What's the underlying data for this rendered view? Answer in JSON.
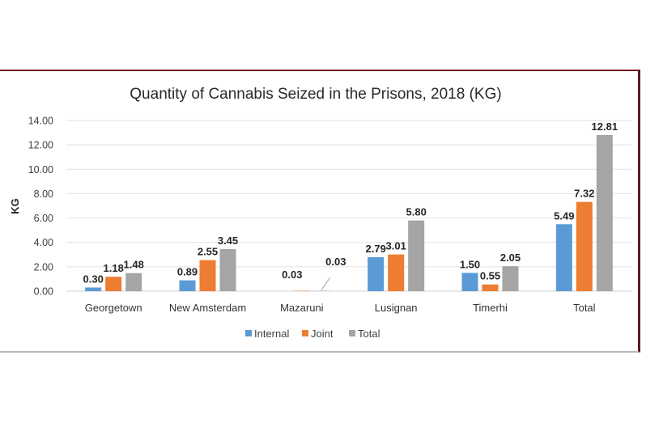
{
  "chart_data": {
    "type": "bar",
    "title": "Quantity of Cannabis Seized in the Prisons, 2018 (KG)",
    "xlabel": "",
    "ylabel": "KG",
    "ylim": [
      0,
      14
    ],
    "yticks": [
      "0.00",
      "2.00",
      "4.00",
      "6.00",
      "8.00",
      "10.00",
      "12.00",
      "14.00"
    ],
    "grid": true,
    "legend_position": "bottom",
    "categories": [
      "Georgetown",
      "New Amsterdam",
      "Mazaruni",
      "Lusignan",
      "Timerhi",
      "Total"
    ],
    "series": [
      {
        "name": "Internal",
        "color": "#5b9bd5",
        "values": [
          0.3,
          0.89,
          null,
          2.79,
          1.5,
          5.49
        ],
        "labels": [
          "0.30",
          "0.89",
          "",
          "2.79",
          "1.50",
          "5.49"
        ]
      },
      {
        "name": "Joint",
        "color": "#ed7d31",
        "values": [
          1.18,
          2.55,
          0.03,
          3.01,
          0.55,
          7.32
        ],
        "labels": [
          "1.18",
          "2.55",
          "0.03",
          "3.01",
          "0.55",
          "7.32"
        ]
      },
      {
        "name": "Total",
        "color": "#a5a5a5",
        "values": [
          1.48,
          3.45,
          0.03,
          5.8,
          2.05,
          12.81
        ],
        "labels": [
          "1.48",
          "3.45",
          "0.03",
          "5.80",
          "2.05",
          "12.81"
        ]
      }
    ]
  }
}
